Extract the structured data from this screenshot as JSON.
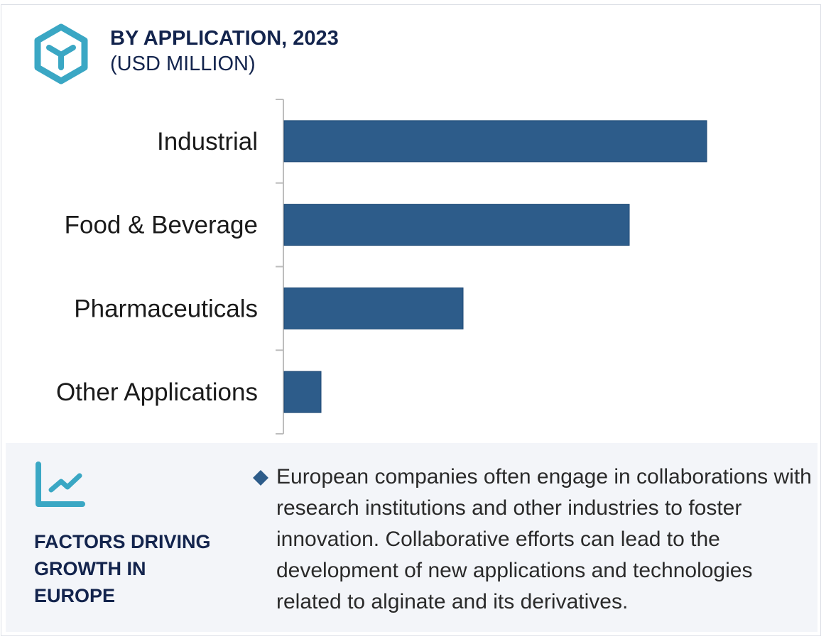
{
  "header": {
    "title": "BY APPLICATION, 2023",
    "subtitle": "(USD MILLION)",
    "icon": "hexagon-cube-icon"
  },
  "colors": {
    "bar": "#2d5c8a",
    "accent": "#3aa7c4",
    "heading": "#13244d",
    "panel_bg": "#f3f5f9",
    "axis": "#bdbdbd"
  },
  "chart_data": {
    "type": "bar",
    "orientation": "horizontal",
    "title": "BY APPLICATION, 2023",
    "subtitle": "(USD MILLION)",
    "categories": [
      "Industrial",
      "Food & Beverage",
      "Pharmaceuticals",
      "Other Applications"
    ],
    "values": [
      595,
      486,
      252,
      52
    ],
    "value_note": "relative values, no value axis shown",
    "xlabel": "",
    "ylabel": "",
    "xlim": [
      0,
      650
    ],
    "grid": false,
    "legend": "none"
  },
  "panel": {
    "icon": "line-chart-growth-icon",
    "heading": "FACTORS DRIVING GROWTH IN EUROPE",
    "bullet_icon": "diamond-bullet-icon",
    "text": "European companies often engage in collaborations with research institutions and other industries to foster innovation. Collaborative efforts can lead to the development of new applications and technologies related to alginate and its derivatives."
  }
}
